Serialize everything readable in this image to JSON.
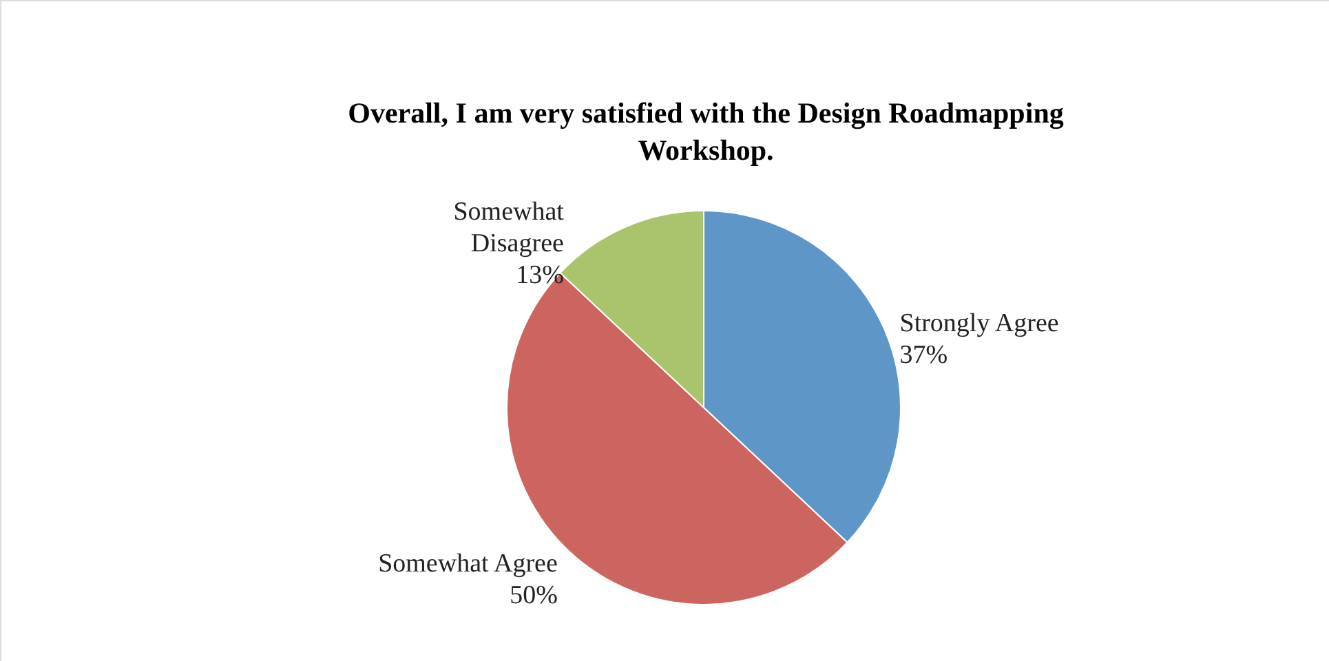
{
  "chart_data": {
    "type": "pie",
    "title": "Overall, I am very satisfied with the Design Roadmapping Workshop.",
    "categories": [
      "Strongly Agree",
      "Somewhat Agree",
      "Somewhat Disagree"
    ],
    "values": [
      37,
      50,
      13
    ],
    "colors": [
      "#5f96c8",
      "#cc6560",
      "#a9c46c"
    ],
    "value_labels": [
      "37%",
      "50%",
      "13%"
    ],
    "legend": false
  }
}
